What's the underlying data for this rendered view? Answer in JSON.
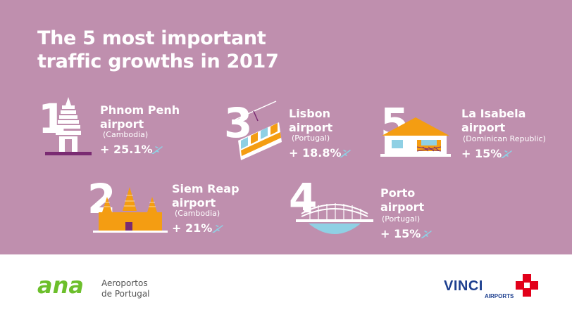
{
  "title": {
    "line1": "The 5 most important",
    "line2": "traffic growths in 2017"
  },
  "items": [
    {
      "rank": "1",
      "name1": "Phnom Penh",
      "name2": "airport",
      "country": "(Cambodia)",
      "growth": "+ 25.1%"
    },
    {
      "rank": "2",
      "name1": "Siem Reap",
      "name2": "airport",
      "country": "(Cambodia)",
      "growth": "+ 21%"
    },
    {
      "rank": "3",
      "name1": "Lisbon",
      "name2": "airport",
      "country": "(Portugal)",
      "growth": "+ 18.8%"
    },
    {
      "rank": "4",
      "name1": "Porto",
      "name2": "airport",
      "country": "(Portugal)",
      "growth": "+ 15%"
    },
    {
      "rank": "5",
      "name1": "La Isabela",
      "name2": "airport",
      "country": "(Dominican Republic)",
      "growth": "+ 15%"
    }
  ],
  "footer": {
    "ana_logo_text": "ana",
    "ana_line1": "Aeroportos",
    "ana_line2": "de Portugal",
    "vinci_word": "VINCI",
    "vinci_sub": "AIRPORTS"
  },
  "colors": {
    "background": "#bf8fae",
    "accent_orange": "#f49d12",
    "accent_blue": "#8fd0e4",
    "ana_green": "#6cbf2b",
    "vinci_blue": "#1d3f8f",
    "vinci_red": "#e2001a"
  },
  "icons": [
    "plane-icon",
    "pagoda-icon",
    "temple-icon",
    "tram-icon",
    "bridge-icon",
    "house-icon"
  ]
}
